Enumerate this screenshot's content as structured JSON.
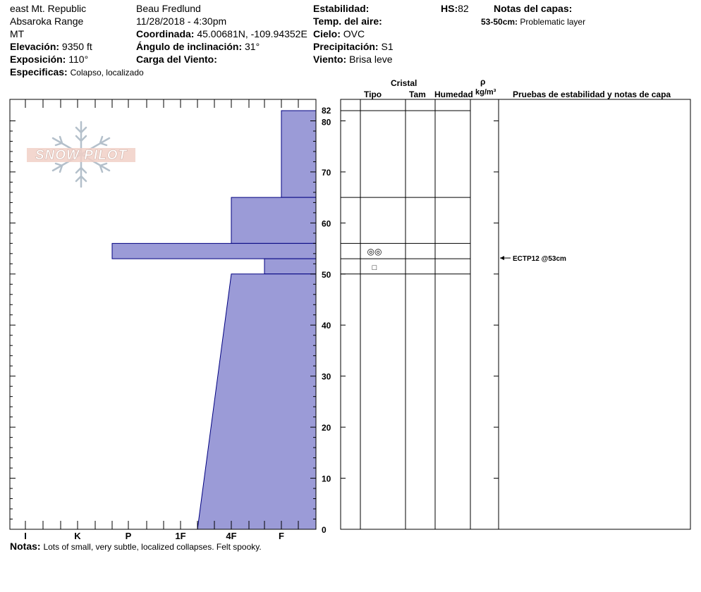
{
  "header": {
    "location": "east Mt. Republic",
    "range": "Absaroka Range",
    "state": "MT",
    "elevation_label": "Elevación:",
    "elevation_value": "9350 ft",
    "aspect_label": "Exposición:",
    "aspect_value": "110°",
    "specifics_label": "Especificas:",
    "specifics_value": "Colapso, localizado",
    "observer": "Beau  Fredlund",
    "datetime": "11/28/2018 - 4:30pm",
    "coord_label": "Coordinada:",
    "coord_value": "45.00681N, -109.94352E",
    "slope_label": "Ángulo de inclinación:",
    "slope_value": "31°",
    "wind_load_label": "Carga del Viento:",
    "stability_label": "Estabilidad:",
    "air_temp_label": "Temp. del aire:",
    "sky_label": "Cielo:",
    "sky_value": "OVC",
    "precip_label": "Precipitación:",
    "precip_value": "S1",
    "wind_label": "Viento:",
    "wind_value": "Brisa leve",
    "hs_label": "HS:",
    "hs_value": "82",
    "layer_notes_label": "Notas del capas:",
    "layer_note_range": "53-50cm:",
    "layer_note_text": "Problematic layer"
  },
  "table_header": {
    "crystal": "Cristal",
    "type": "Tipo",
    "size": "Tam",
    "moisture": "Humedad",
    "rho": "ρ",
    "density_unit": "kg/m³",
    "tests": "Pruebas de estabilidad y notas de capa"
  },
  "footer": {
    "notes_label": "Notas:",
    "notes_text": "Lots of small, very subtle, localized collapses.  Felt spooky."
  },
  "logo_text": "SNOW PILOT",
  "colors": {
    "fill": "#9b9bd7",
    "outline": "#000080"
  },
  "chart_data": {
    "type": "area",
    "title": "",
    "xlabel": "",
    "ylabel": "",
    "y_axis_unit": "cm",
    "ylim": [
      0,
      82
    ],
    "hardness_scale": [
      "I",
      "K",
      "P",
      "1F",
      "4F",
      "F"
    ],
    "y_ticks": [
      0,
      10,
      20,
      30,
      40,
      50,
      60,
      70,
      80,
      82
    ],
    "hardness_layers": [
      {
        "top": 82,
        "bottom": 65,
        "hardness_top": "F",
        "hardness_bottom": "F"
      },
      {
        "top": 65,
        "bottom": 56,
        "hardness_top": "4F",
        "hardness_bottom": "4F"
      },
      {
        "top": 56,
        "bottom": 53,
        "hardness_top": "K+",
        "hardness_bottom": "K+"
      },
      {
        "top": 53,
        "bottom": 50,
        "hardness_top": "4F+",
        "hardness_bottom": "4F+"
      },
      {
        "top": 50,
        "bottom": 0,
        "hardness_top": "4F",
        "hardness_bottom": "1F+"
      }
    ],
    "layer_boundaries": [
      82,
      65,
      56,
      53,
      50
    ],
    "grain_types": [
      {
        "depth": 54.5,
        "symbol": "◎◎"
      },
      {
        "depth": 51.5,
        "symbol": "□"
      }
    ],
    "stability_tests": [
      {
        "depth": 53,
        "result": "ECTP12 @53cm"
      }
    ]
  }
}
